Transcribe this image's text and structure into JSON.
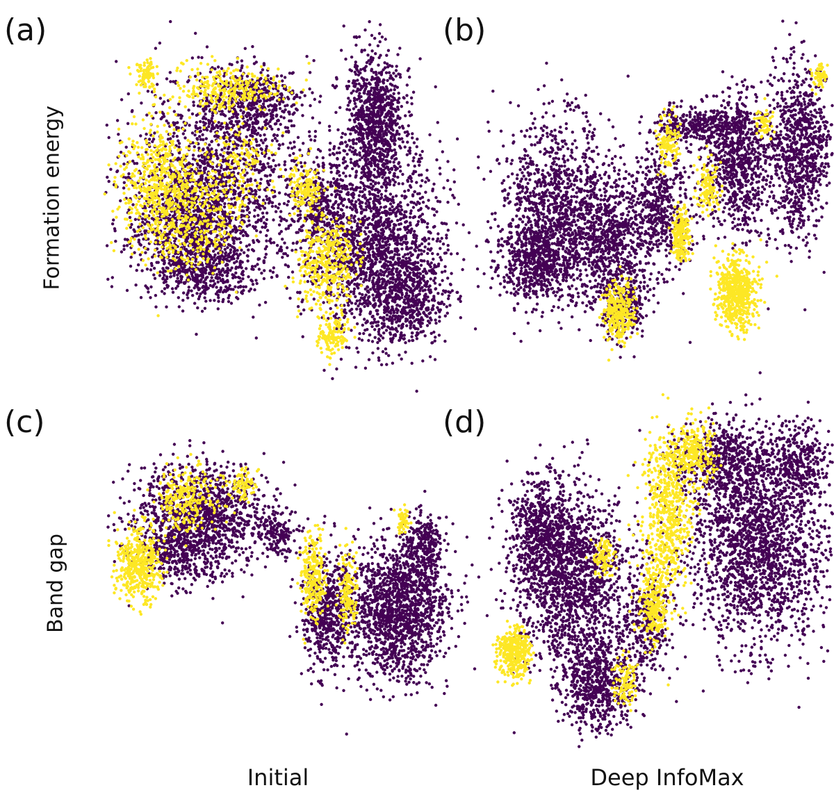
{
  "labels": {
    "panel_a": "(a)",
    "panel_b": "(b)",
    "panel_c": "(c)",
    "panel_d": "(d)",
    "row_top": "Formation energy",
    "row_bottom": "Band gap",
    "col_left": "Initial",
    "col_right": "Deep InfoMax"
  },
  "colors": {
    "class_low": "#440154",
    "class_high": "#fde725"
  },
  "chart_data": [
    {
      "type": "scatter",
      "panel": "(a)",
      "row": "Formation energy",
      "column": "Initial",
      "series": [
        {
          "color": "#440154"
        },
        {
          "color": "#fde725"
        }
      ],
      "grid": false,
      "axes": false
    },
    {
      "type": "scatter",
      "panel": "(b)",
      "row": "Formation energy",
      "column": "Deep InfoMax",
      "series": [
        {
          "color": "#440154"
        },
        {
          "color": "#fde725"
        }
      ],
      "grid": false,
      "axes": false
    },
    {
      "type": "scatter",
      "panel": "(c)",
      "row": "Band gap",
      "column": "Initial",
      "series": [
        {
          "color": "#440154"
        },
        {
          "color": "#fde725"
        }
      ],
      "grid": false,
      "axes": false
    },
    {
      "type": "scatter",
      "panel": "(d)",
      "row": "Band gap",
      "column": "Deep InfoMax",
      "series": [
        {
          "color": "#440154"
        },
        {
          "color": "#fde725"
        }
      ],
      "grid": false,
      "axes": false
    }
  ]
}
